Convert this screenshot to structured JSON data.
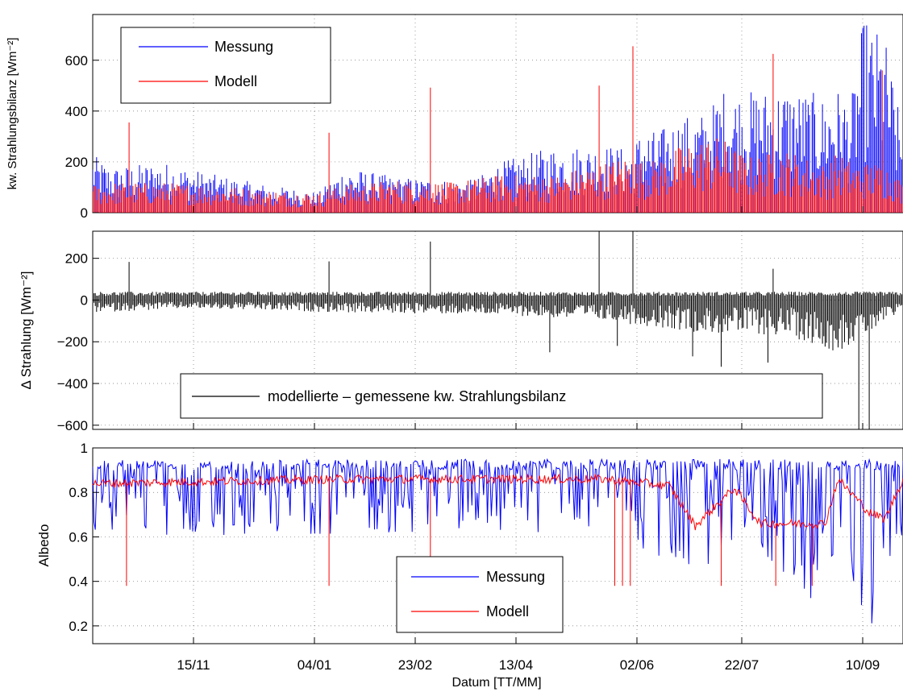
{
  "colors": {
    "measurement": "#0000ff",
    "model": "#ff0000",
    "difference": "#000000"
  },
  "xaxis": {
    "label": "Datum [TT/MM]",
    "tick_labels": [
      "15/11",
      "04/01",
      "23/02",
      "13/04",
      "02/06",
      "22/07",
      "10/09"
    ]
  },
  "chart_data": [
    {
      "type": "line",
      "ylabel": "kw. Strahlungsbilanz [Wm⁻²]",
      "ylim": [
        0,
        780
      ],
      "yticks": [
        0,
        200,
        400,
        600
      ],
      "grid": true,
      "legend": {
        "placement": "top-left",
        "entries": [
          "Messung",
          "Modell"
        ]
      },
      "series": [
        {
          "name": "Messung",
          "color": "#0000ff",
          "envelope": [
            [
              -37,
              230
            ],
            [
              -30,
              180
            ],
            [
              -10,
              200
            ],
            [
              10,
              150
            ],
            [
              30,
              110
            ],
            [
              50,
              80
            ],
            [
              60,
              180
            ],
            [
              80,
              140
            ],
            [
              100,
              130
            ],
            [
              110,
              130
            ],
            [
              120,
              200
            ],
            [
              140,
              260
            ],
            [
              160,
              270
            ],
            [
              170,
              250
            ],
            [
              175,
              340
            ],
            [
              180,
              320
            ],
            [
              190,
              380
            ],
            [
              200,
              400
            ],
            [
              205,
              490
            ],
            [
              215,
              480
            ],
            [
              230,
              500
            ],
            [
              245,
              460
            ],
            [
              250,
              490
            ],
            [
              255,
              440
            ],
            [
              260,
              780
            ],
            [
              262,
              740
            ],
            [
              268,
              700
            ],
            [
              275,
              310
            ]
          ],
          "peaks": []
        },
        {
          "name": "Modell",
          "color": "#ff0000",
          "envelope": [
            [
              -37,
              110
            ],
            [
              -30,
              120
            ],
            [
              -10,
              120
            ],
            [
              10,
              110
            ],
            [
              30,
              90
            ],
            [
              50,
              80
            ],
            [
              60,
              110
            ],
            [
              80,
              130
            ],
            [
              100,
              120
            ],
            [
              120,
              150
            ],
            [
              140,
              150
            ],
            [
              160,
              200
            ],
            [
              170,
              230
            ],
            [
              175,
              200
            ],
            [
              180,
              210
            ],
            [
              190,
              270
            ],
            [
              200,
              300
            ],
            [
              205,
              300
            ],
            [
              215,
              220
            ],
            [
              230,
              250
            ],
            [
              245,
              190
            ],
            [
              250,
              240
            ],
            [
              255,
              200
            ],
            [
              260,
              200
            ],
            [
              268,
              200
            ],
            [
              275,
              120
            ]
          ],
          "peaks": [
            [
              -23,
              355
            ],
            [
              54,
              315
            ],
            [
              93,
              492
            ],
            [
              158,
              500
            ],
            [
              171,
              655
            ],
            [
              225,
              625
            ],
            [
              267,
              560
            ]
          ]
        }
      ]
    },
    {
      "type": "line",
      "ylabel": "Δ Strahlung [Wm⁻²]",
      "ylim": [
        -620,
        330
      ],
      "yticks": [
        -600,
        -400,
        -200,
        0,
        200
      ],
      "grid": true,
      "legend": {
        "placement": "bottom-center",
        "entries": [
          "modellierte – gemessene kw. Strahlungsbilanz"
        ]
      },
      "series": [
        {
          "name": "modellierte – gemessene kw. Strahlungsbilanz",
          "color": "#000000",
          "baseline_spread": [
            [
              -37,
              -60
            ],
            [
              0,
              -40
            ],
            [
              60,
              -60
            ],
            [
              120,
              -70
            ],
            [
              160,
              -100
            ],
            [
              200,
              -160
            ],
            [
              230,
              -170
            ],
            [
              250,
              -250
            ],
            [
              275,
              -60
            ]
          ],
          "spikes": [
            [
              -23,
              183
            ],
            [
              54,
              185
            ],
            [
              93,
              280
            ],
            [
              139,
              -250
            ],
            [
              158,
              330
            ],
            [
              165,
              -220
            ],
            [
              171,
              330
            ],
            [
              194,
              -270
            ],
            [
              205,
              -320
            ],
            [
              223,
              -300
            ],
            [
              225,
              150
            ],
            [
              258,
              -620
            ],
            [
              262,
              -620
            ]
          ]
        }
      ]
    },
    {
      "type": "line",
      "xlabel": "Datum [TT/MM]",
      "ylabel": "Albedo",
      "ylim": [
        0.12,
        1.0
      ],
      "yticks": [
        0.2,
        0.4,
        0.6,
        0.8,
        1
      ],
      "grid": true,
      "legend": {
        "placement": "bottom-center",
        "entries": [
          "Messung",
          "Modell"
        ]
      },
      "series": [
        {
          "name": "Messung",
          "color": "#0000ff",
          "upper": [
            [
              -37,
              0.95
            ],
            [
              275,
              0.95
            ]
          ],
          "lower": [
            [
              -37,
              0.6
            ],
            [
              100,
              0.62
            ],
            [
              170,
              0.62
            ],
            [
              180,
              0.45
            ],
            [
              200,
              0.45
            ],
            [
              215,
              0.55
            ],
            [
              230,
              0.42
            ],
            [
              240,
              0.3
            ],
            [
              245,
              0.2
            ],
            [
              255,
              0.15
            ],
            [
              262,
              0.13
            ],
            [
              268,
              0.45
            ],
            [
              275,
              0.6
            ]
          ]
        },
        {
          "name": "Modell",
          "color": "#ff0000",
          "baseline": [
            [
              -37,
              0.84
            ],
            [
              60,
              0.86
            ],
            [
              160,
              0.86
            ],
            [
              185,
              0.83
            ],
            [
              195,
              0.65
            ],
            [
              210,
              0.82
            ],
            [
              220,
              0.66
            ],
            [
              245,
              0.66
            ],
            [
              250,
              0.86
            ],
            [
              262,
              0.71
            ],
            [
              268,
              0.68
            ],
            [
              275,
              0.86
            ]
          ],
          "dips": [
            [
              -24,
              0.38
            ],
            [
              54,
              0.38
            ],
            [
              93,
              0.51
            ],
            [
              164,
              0.38
            ],
            [
              167,
              0.38
            ],
            [
              170,
              0.38
            ],
            [
              205,
              0.38
            ],
            [
              226,
              0.38
            ],
            [
              240,
              0.38
            ]
          ]
        }
      ]
    }
  ]
}
